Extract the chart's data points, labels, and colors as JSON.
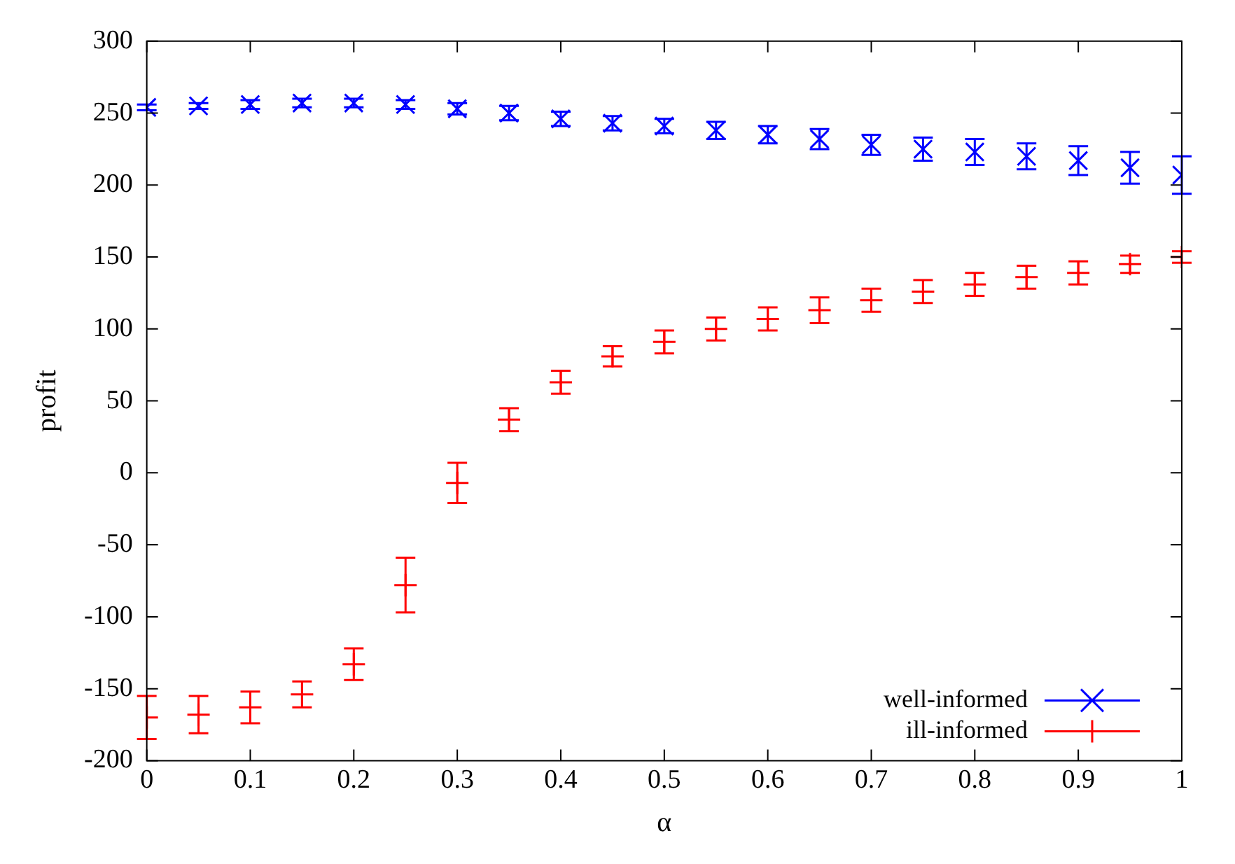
{
  "chart_data": {
    "type": "scatter",
    "xlabel": "α",
    "ylabel": "profit",
    "x": [
      0,
      0.05,
      0.1,
      0.15,
      0.2,
      0.25,
      0.3,
      0.35,
      0.4,
      0.45,
      0.5,
      0.55,
      0.6,
      0.65,
      0.7,
      0.75,
      0.8,
      0.85,
      0.9,
      0.95,
      1
    ],
    "series": [
      {
        "name": "well-informed",
        "color": "#0000ff",
        "values": [
          254,
          255,
          256,
          257,
          257,
          256,
          253,
          250,
          246,
          243,
          241,
          238,
          235,
          232,
          228,
          225,
          223,
          220,
          217,
          212,
          207
        ],
        "errors": [
          2,
          2,
          3,
          3,
          3,
          3,
          4,
          5,
          5,
          5,
          5,
          6,
          6,
          7,
          7,
          8,
          9,
          9,
          10,
          11,
          13
        ]
      },
      {
        "name": "ill-informed",
        "color": "#ff0000",
        "values": [
          -170,
          -168,
          -163,
          -154,
          -133,
          -78,
          -7,
          37,
          63,
          81,
          91,
          100,
          107,
          113,
          120,
          126,
          131,
          136,
          139,
          145,
          150
        ],
        "errors": [
          15,
          13,
          11,
          9,
          11,
          19,
          14,
          8,
          8,
          7,
          8,
          8,
          8,
          9,
          8,
          8,
          8,
          8,
          8,
          6,
          4
        ]
      }
    ],
    "xlim": [
      0,
      1
    ],
    "xticks": [
      0,
      0.1,
      0.2,
      0.3,
      0.4,
      0.5,
      0.6,
      0.7,
      0.8,
      0.9,
      1
    ],
    "ylim": [
      -200,
      300
    ],
    "yticks": [
      -200,
      -150,
      -100,
      -50,
      0,
      50,
      100,
      150,
      200,
      250,
      300
    ],
    "grid": false,
    "legend": "bottom right",
    "marker": "cross"
  }
}
